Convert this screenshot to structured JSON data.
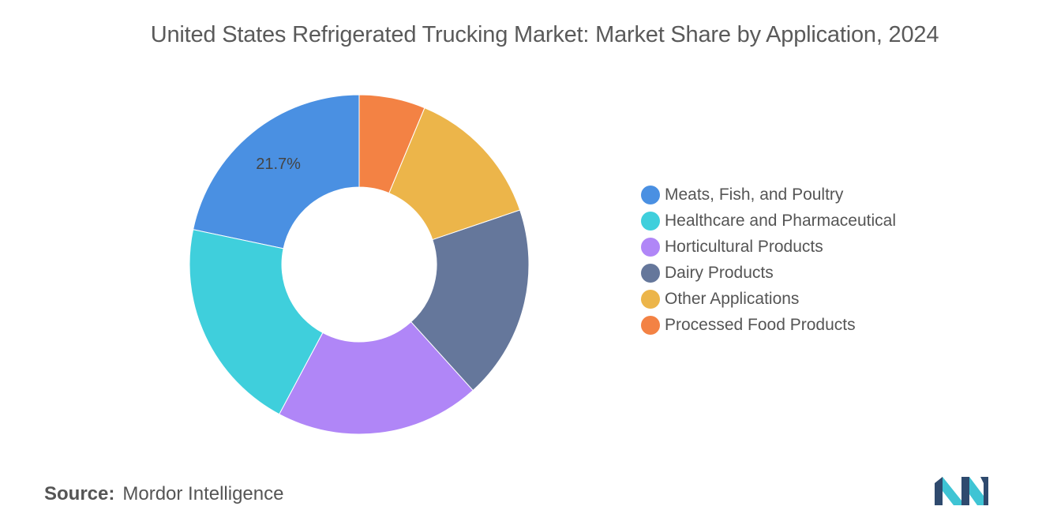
{
  "title": "United States Refrigerated Trucking Market: Market Share by Application, 2024",
  "source": {
    "label": "Source:",
    "value": "Mordor Intelligence"
  },
  "logo": {
    "name": "mordor-intelligence-logo",
    "colors": [
      "#2f4a6e",
      "#3fc4d4"
    ]
  },
  "chart_data": {
    "type": "pie",
    "donut": true,
    "title": "United States Refrigerated Trucking Market: Market Share by Application, 2024",
    "legend_position": "right",
    "categories": [
      "Meats, Fish, and Poultry",
      "Healthcare and Pharmaceutical",
      "Horticultural Products",
      "Dairy Products",
      "Other Applications",
      "Processed Food Products"
    ],
    "values": [
      21.7,
      20.5,
      19.5,
      18.5,
      13.5,
      6.3
    ],
    "colors": [
      "#4a90e2",
      "#3fcfdc",
      "#b086f7",
      "#65779b",
      "#ecb54a",
      "#f38244"
    ],
    "data_labels": [
      "21.7%",
      "",
      "",
      "",
      "",
      ""
    ]
  }
}
